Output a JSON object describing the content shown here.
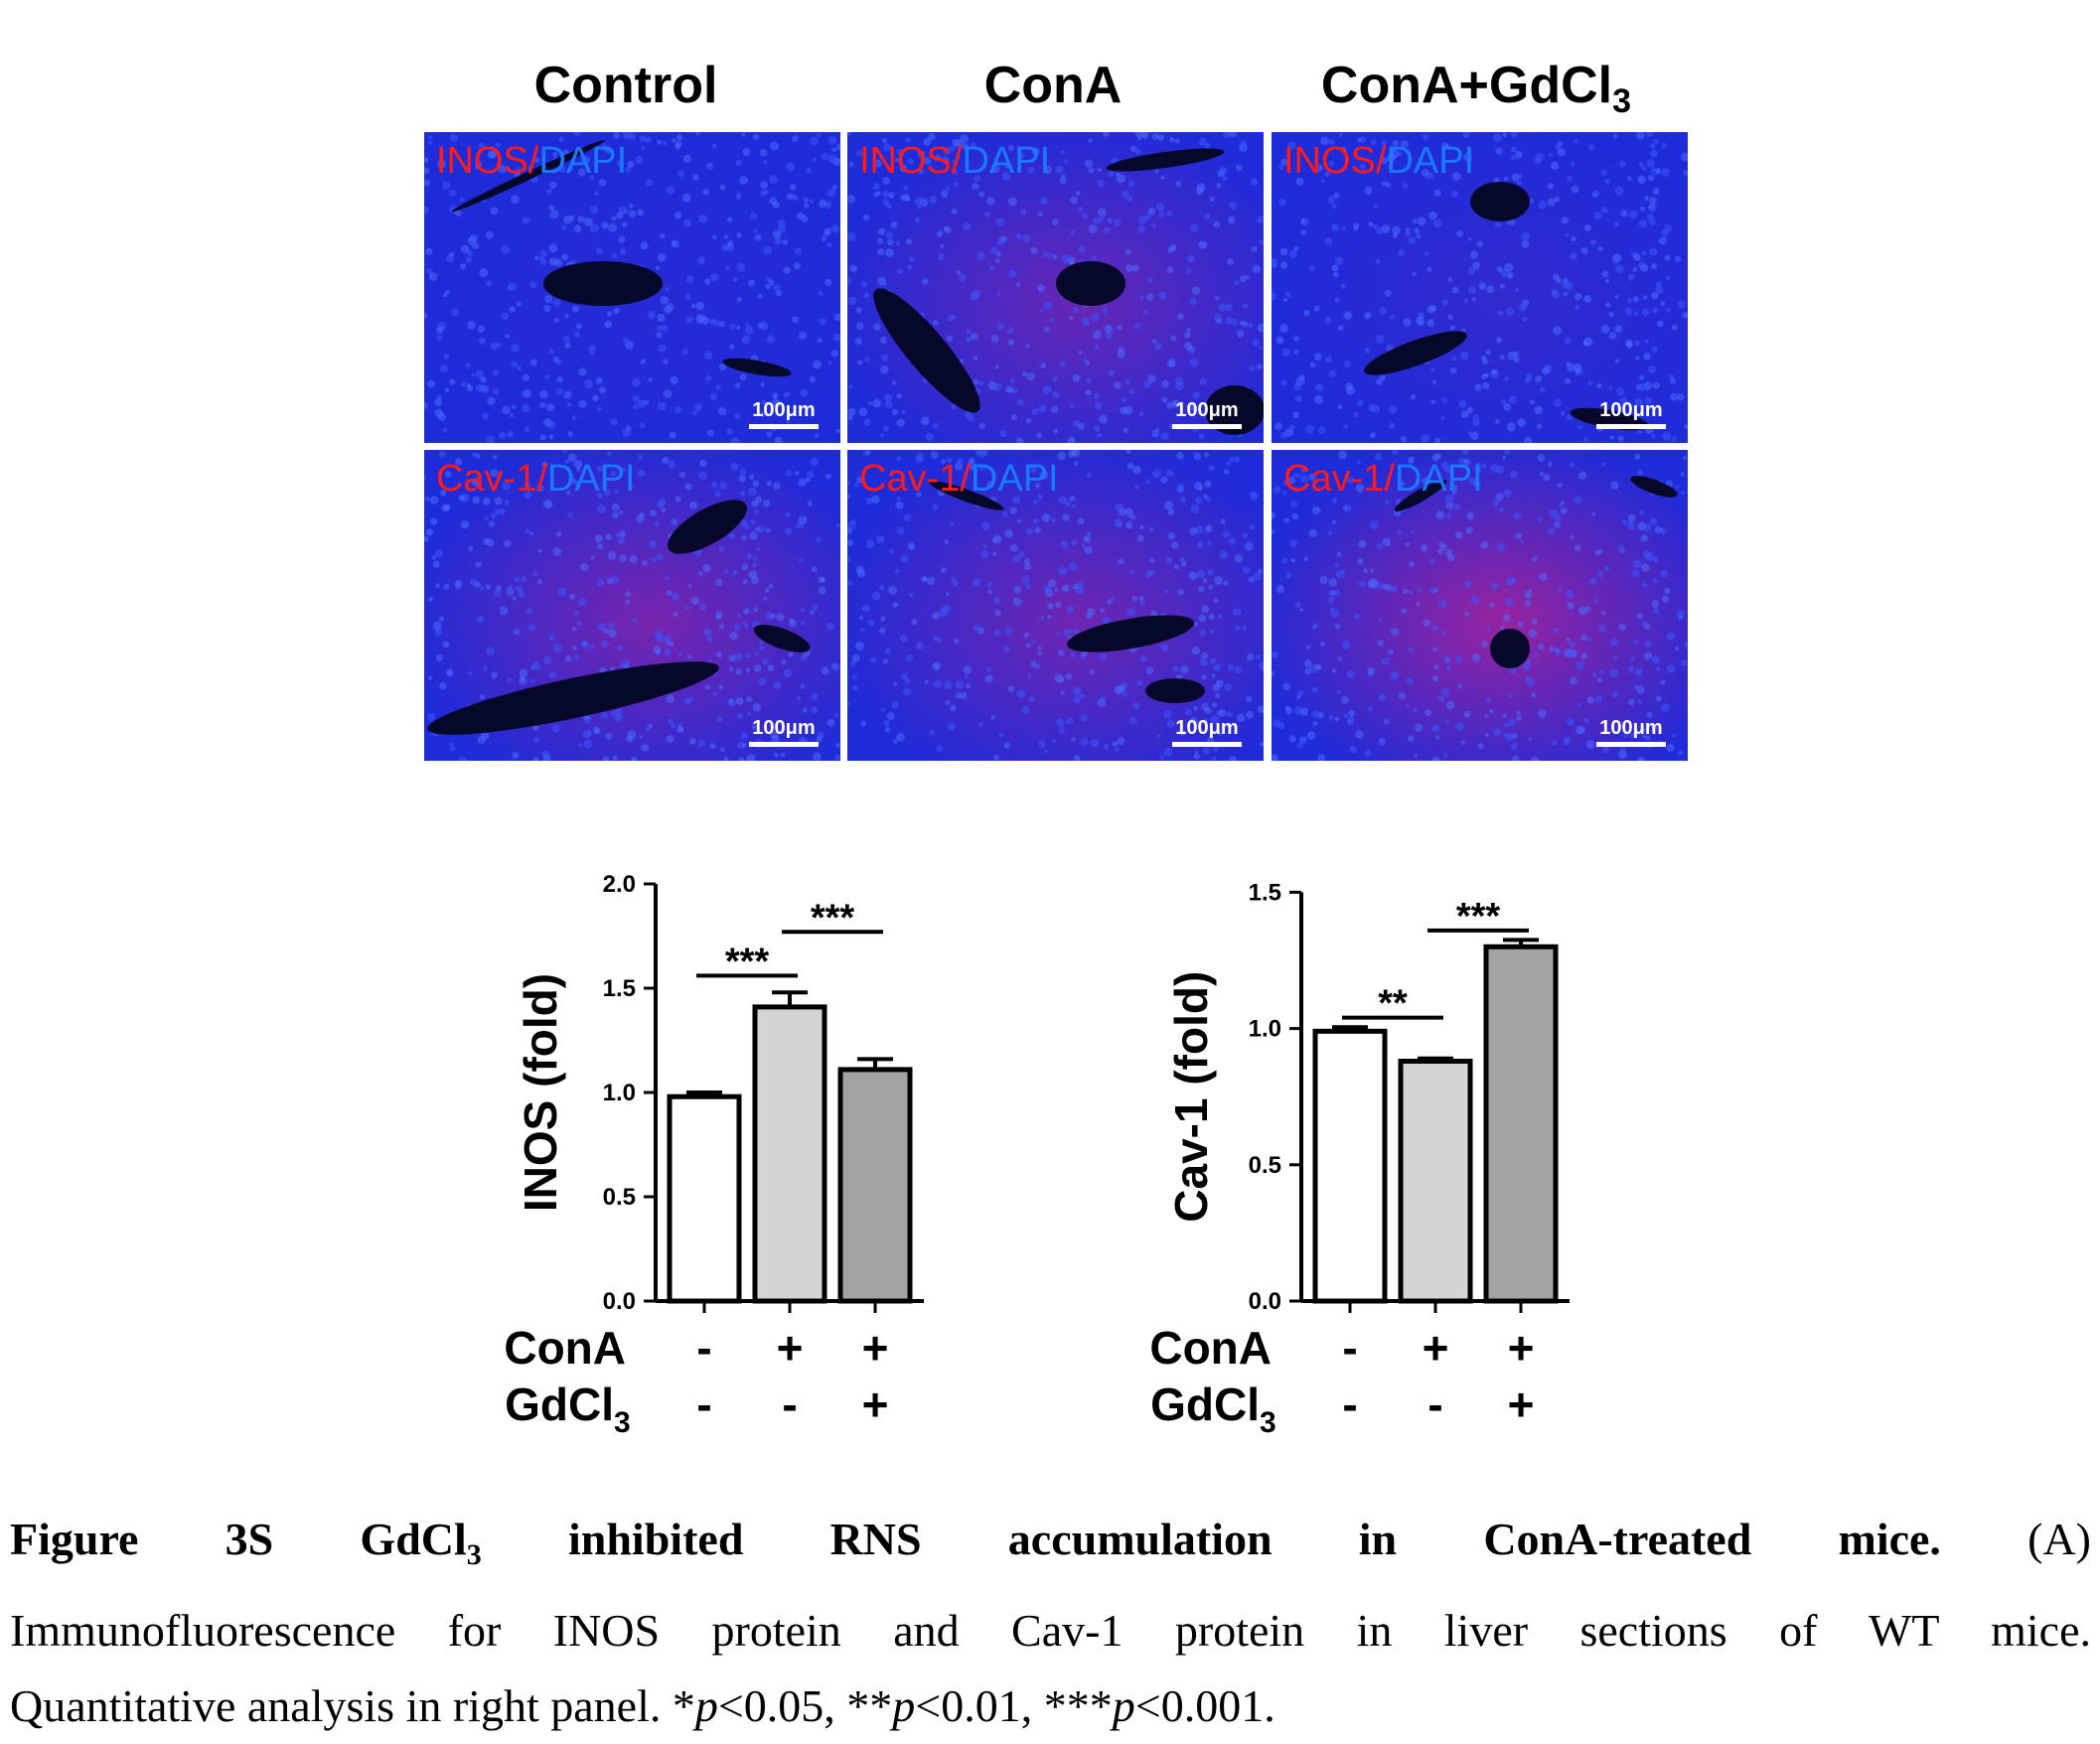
{
  "columns": [
    {
      "text": "Control",
      "sub": ""
    },
    {
      "text": "ConA",
      "sub": ""
    },
    {
      "text": "ConA+GdCl",
      "sub": "3"
    }
  ],
  "rows": [
    {
      "marker": "INOS/",
      "stain": "DAPI"
    },
    {
      "marker": "Cav-1/",
      "stain": "DAPI"
    }
  ],
  "scale_bar": "100μm",
  "colors": {
    "marker_text": "#ff1a1a",
    "dapi_text": "#1a7aff",
    "tissue_blue": "#1e2bd8",
    "tissue_red": "#c0208a"
  },
  "groups": {
    "row1_label": "ConA",
    "row2_label": "GdCl",
    "row2_sub": "3",
    "row1_values": [
      "-",
      "+",
      "+"
    ],
    "row2_values": [
      "-",
      "-",
      "+"
    ]
  },
  "chart_data": [
    {
      "type": "bar",
      "ylabel": "INOS (fold)",
      "ylim": [
        0,
        2.0
      ],
      "yticks": [
        "0.0",
        "0.5",
        "1.0",
        "1.5",
        "2.0"
      ],
      "values": [
        0.98,
        1.41,
        1.11
      ],
      "errors": [
        0.02,
        0.07,
        0.05
      ],
      "colors": [
        "#ffffff",
        "#d4d4d4",
        "#a3a3a6"
      ],
      "significance": [
        {
          "from": 0,
          "to": 1,
          "y": 1.56,
          "text": "***"
        },
        {
          "from": 1,
          "to": 2,
          "y": 1.77,
          "text": "***"
        }
      ]
    },
    {
      "type": "bar",
      "ylabel": "Cav-1 (fold)",
      "ylim": [
        0,
        1.5
      ],
      "yticks": [
        "0.0",
        "0.5",
        "1.0",
        "1.5"
      ],
      "values": [
        0.99,
        0.88,
        1.3
      ],
      "errors": [
        0.015,
        0.01,
        0.025
      ],
      "colors": [
        "#ffffff",
        "#d4d4d4",
        "#a3a3a6"
      ],
      "significance": [
        {
          "from": 0,
          "to": 1,
          "y": 1.04,
          "text": "**"
        },
        {
          "from": 1,
          "to": 2,
          "y": 1.36,
          "text": "***"
        }
      ]
    }
  ],
  "caption": {
    "title_a": "Figure 3S GdCl",
    "title_sub": "3",
    "title_b": " inhibited RNS accumulation in ConA-treated mice.",
    "line1_rest": " (A)",
    "line2": "Immunofluorescence for INOS protein and Cav-1 protein in liver sections of WT mice.",
    "line3_a": "Quantitative analysis in right panel. *",
    "p": "p",
    "line3_b": "<0.05, **",
    "line3_c": "<0.01, ***",
    "line3_d": "<0.001."
  }
}
